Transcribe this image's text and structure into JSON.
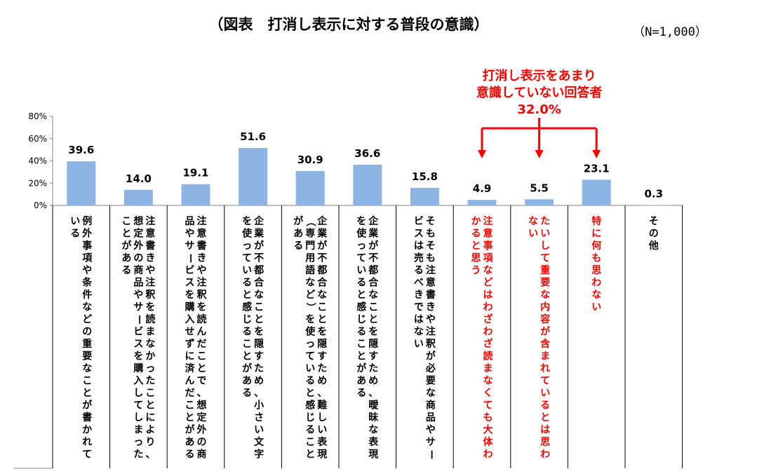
{
  "chart_data": {
    "type": "bar",
    "title": "（図表　打消し表示に対する普段の意識）",
    "sample_note": "（N=1,000）",
    "y_ticks": [
      "80%",
      "60%",
      "40%",
      "20%",
      "0%"
    ],
    "ylim": [
      0,
      80
    ],
    "grid": false,
    "bar_color": "#8eb4e3",
    "highlight_color": "#ff0000",
    "values": [
      39.6,
      14.0,
      19.1,
      51.6,
      30.9,
      36.6,
      15.8,
      4.9,
      5.5,
      23.1,
      0.3
    ],
    "value_labels": [
      "39.6",
      "14.0",
      "19.1",
      "51.6",
      "30.9",
      "36.6",
      "15.8",
      "4.9",
      "5.5",
      "23.1",
      "0.3"
    ],
    "categories": [
      "例外事項や条件などの重要なことが書かれている",
      "注意書きや注釈を読まなかったことにより、想定外の商品やサービスを購入してしまったことがある",
      "注意書きや注釈を読んだことで、想定外の商品やサービスを購入せずに済んだことがある",
      "企業が不都合なことを隠すため、小さい文字を使っていると感じることがある",
      "企業が不都合なことを隠すため、難しい表現（専門用語など）を使っていると感じることがある",
      "企業が不都合なことを隠すため、曖昧な表現を使っていると感じることがある",
      "そもそも注意書きや注釈が必要な商品やサービスは売るべきではない",
      "注意事項などはわざわざ読まなくても大体わかると思う",
      "たいして重要な内容が含まれているとは思わない",
      "特に何も思わない",
      "その他"
    ],
    "highlighted": [
      false,
      false,
      false,
      false,
      false,
      false,
      false,
      true,
      true,
      true,
      false
    ],
    "callout": {
      "lines": [
        "打消し表示をあまり",
        "意識していない回答者",
        "32.0%"
      ],
      "targets": [
        7,
        8,
        9
      ]
    }
  }
}
